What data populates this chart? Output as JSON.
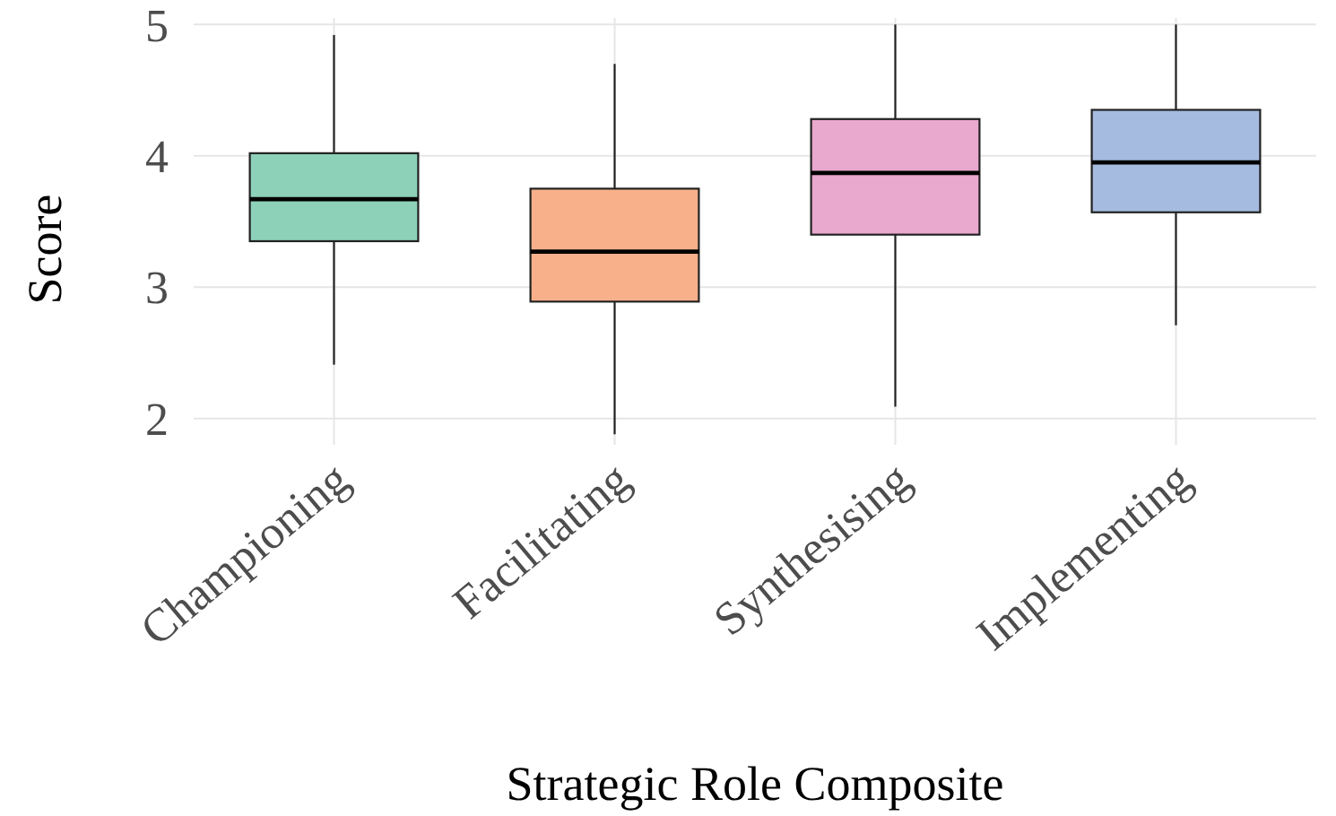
{
  "chart_data": {
    "type": "box",
    "xlabel": "Strategic Role Composite",
    "ylabel": "Score",
    "categories": [
      "Championing",
      "Facilitating",
      "Synthesising",
      "Implementing"
    ],
    "colors": [
      "#8dd1b9",
      "#f8b08b",
      "#e9a8ce",
      "#a6bbe0"
    ],
    "boxes": [
      {
        "low": 2.41,
        "q1": 3.35,
        "median": 3.67,
        "q3": 4.02,
        "high": 4.92
      },
      {
        "low": 1.88,
        "q1": 2.89,
        "median": 3.27,
        "q3": 3.75,
        "high": 4.7
      },
      {
        "low": 2.09,
        "q1": 3.4,
        "median": 3.87,
        "q3": 4.28,
        "high": 5.0
      },
      {
        "low": 2.71,
        "q1": 3.57,
        "median": 3.95,
        "q3": 4.35,
        "high": 5.0
      }
    ],
    "ylim": [
      1.8,
      5.05
    ],
    "yticks": [
      2,
      3,
      4,
      5
    ],
    "grid": true
  }
}
